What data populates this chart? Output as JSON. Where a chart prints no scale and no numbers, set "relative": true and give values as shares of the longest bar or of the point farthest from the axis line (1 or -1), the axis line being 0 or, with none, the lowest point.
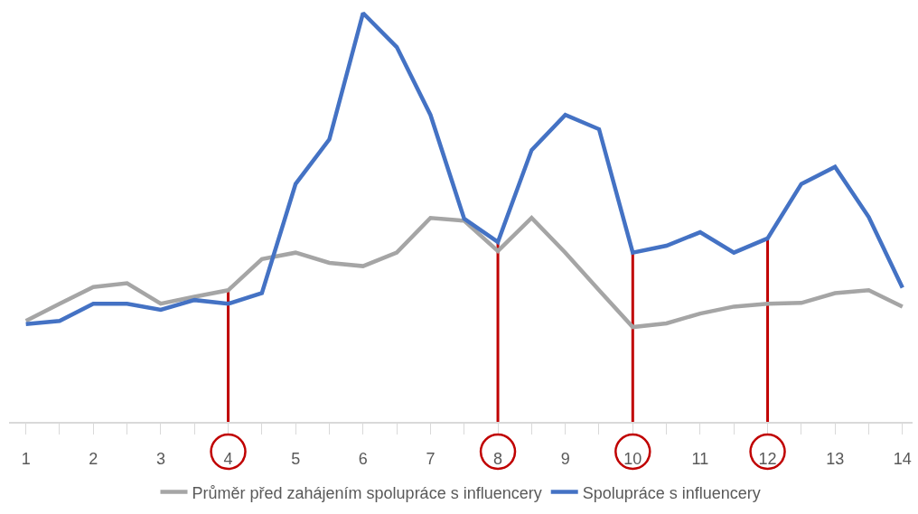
{
  "chart_data": {
    "type": "line",
    "relative": true,
    "x": [
      1,
      1.5,
      2,
      2.5,
      3,
      3.5,
      4,
      4.5,
      5,
      5.5,
      6,
      6.5,
      7,
      7.5,
      8,
      8.5,
      9,
      9.5,
      10,
      10.5,
      11,
      11.5,
      12,
      12.5,
      13,
      13.5,
      14
    ],
    "xlim": [
      0.75,
      14.15
    ],
    "xticks": [
      1,
      {
        "value": 1.5,
        "label": null
      },
      2,
      {
        "value": 2.5,
        "label": null
      },
      3,
      {
        "value": 3.5,
        "label": null
      },
      4,
      {
        "value": 4.5,
        "label": null
      },
      5,
      {
        "value": 5.5,
        "label": null
      },
      6,
      {
        "value": 6.5,
        "label": null
      },
      7,
      {
        "value": 7.5,
        "label": null
      },
      8,
      {
        "value": 8.5,
        "label": null
      },
      9,
      {
        "value": 9.5,
        "label": null
      },
      10,
      {
        "value": 10.5,
        "label": null
      },
      11,
      {
        "value": 11.5,
        "label": null
      },
      12,
      {
        "value": 12.5,
        "label": null
      },
      13,
      {
        "value": 13.5,
        "label": null
      },
      14
    ],
    "series": [
      {
        "name": "Průměr před zahájením spolupráce s influencery",
        "color": "#a5a5a5",
        "values": [
          0.247,
          0.289,
          0.33,
          0.339,
          0.289,
          0.306,
          0.322,
          0.398,
          0.414,
          0.389,
          0.381,
          0.414,
          0.499,
          0.492,
          0.418,
          0.499,
          0.414,
          0.322,
          0.232,
          0.241,
          0.265,
          0.282,
          0.289,
          0.291,
          0.315,
          0.322,
          0.282
        ]
      },
      {
        "name": "Spolupráce s influencery",
        "color": "#4472c4",
        "values": [
          0.239,
          0.247,
          0.289,
          0.289,
          0.274,
          0.298,
          0.289,
          0.315,
          0.582,
          0.691,
          1,
          0.917,
          0.751,
          0.497,
          0.44,
          0.665,
          0.751,
          0.716,
          0.414,
          0.431,
          0.464,
          0.414,
          0.449,
          0.582,
          0.624,
          0.501,
          0.328
        ]
      }
    ],
    "ref_lines": [
      {
        "axis": "x",
        "value": 4,
        "color": "#c00000"
      },
      {
        "axis": "x",
        "value": 8,
        "color": "#c00000"
      },
      {
        "axis": "x",
        "value": 10,
        "color": "#c00000"
      },
      {
        "axis": "x",
        "value": 12,
        "color": "#c00000"
      }
    ],
    "legend": "bottom",
    "marker": "none",
    "line_style": "solid",
    "grid": false
  }
}
